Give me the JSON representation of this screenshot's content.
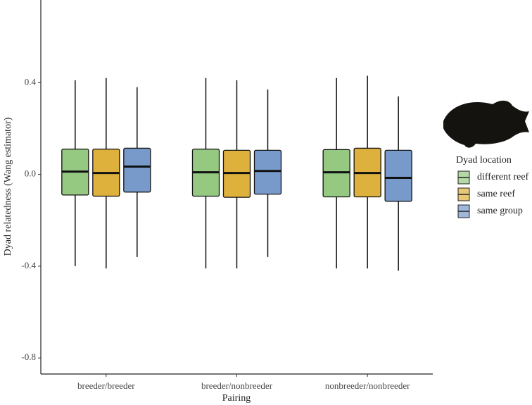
{
  "chart_data": {
    "type": "box",
    "x_label": "Pairing",
    "y_label": "Dyad relatedness (Wang estimator)",
    "categories": [
      "breeder/breeder",
      "breeder/nonbreeder",
      "nonbreeder/nonbreeder"
    ],
    "ylim": [
      -0.87,
      0.76
    ],
    "yticks": [
      0.4,
      {
        "value": 0,
        "label": "0.0"
      },
      -0.4,
      -0.8
    ],
    "legend_title": "Dyad location",
    "legend_position": "right",
    "series": [
      {
        "name": "different reef",
        "color": "#82c06c",
        "min": [
          -0.4,
          -0.41,
          -0.41
        ],
        "q1": [
          -0.09,
          -0.095,
          -0.098
        ],
        "median": [
          0.012,
          0.009,
          0.009
        ],
        "q3": [
          0.11,
          0.11,
          0.108
        ],
        "max": [
          0.41,
          0.42,
          0.42
        ]
      },
      {
        "name": "same reef",
        "color": "#d8a31a",
        "min": [
          -0.41,
          -0.41,
          -0.41
        ],
        "q1": [
          -0.095,
          -0.1,
          -0.098
        ],
        "median": [
          0.006,
          0.006,
          0.006
        ],
        "q3": [
          0.11,
          0.105,
          0.114
        ],
        "max": [
          0.42,
          0.41,
          0.43
        ]
      },
      {
        "name": "same group",
        "color": "#5f88c2",
        "min": [
          -0.36,
          -0.36,
          -0.42
        ],
        "q1": [
          -0.077,
          -0.086,
          -0.117
        ],
        "median": [
          0.034,
          0.015,
          -0.015
        ],
        "q3": [
          0.114,
          0.105,
          0.105
        ],
        "max": [
          0.38,
          0.37,
          0.34
        ]
      }
    ]
  }
}
